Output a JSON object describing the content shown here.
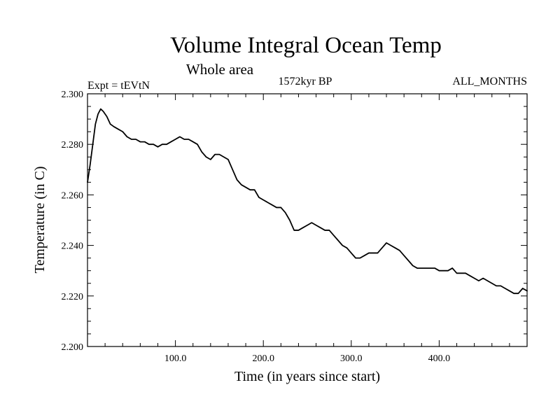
{
  "chart_data": {
    "type": "line",
    "title": "Volume Integral Ocean Temp",
    "subtitle": "Whole area",
    "left_label": "Expt = tEVtN",
    "center_label": "1572kyr BP",
    "right_label": "ALL_MONTHS",
    "xlabel": "Time (in years since start)",
    "ylabel": "Temperature (in C)",
    "xlim": [
      0,
      500
    ],
    "ylim": [
      2.2,
      2.3
    ],
    "x_ticks": [
      100,
      200,
      300,
      400
    ],
    "x_tick_labels": [
      "100.0",
      "200.0",
      "300.0",
      "400.0"
    ],
    "y_ticks": [
      2.2,
      2.22,
      2.24,
      2.26,
      2.28,
      2.3
    ],
    "y_tick_labels": [
      "2.200",
      "2.220",
      "2.240",
      "2.260",
      "2.280",
      "2.300"
    ],
    "grid": false,
    "line_color": "#000000",
    "series": [
      {
        "name": "tEVtN",
        "x": [
          0,
          3,
          6,
          9,
          12,
          15,
          18,
          22,
          26,
          30,
          35,
          40,
          45,
          50,
          55,
          60,
          65,
          70,
          75,
          80,
          85,
          90,
          95,
          100,
          105,
          110,
          115,
          120,
          125,
          130,
          135,
          140,
          145,
          150,
          155,
          160,
          165,
          170,
          175,
          180,
          185,
          190,
          195,
          200,
          205,
          210,
          215,
          220,
          225,
          230,
          235,
          240,
          245,
          250,
          255,
          260,
          265,
          270,
          275,
          280,
          285,
          290,
          295,
          300,
          305,
          310,
          315,
          320,
          325,
          330,
          335,
          340,
          345,
          350,
          355,
          360,
          365,
          370,
          375,
          380,
          385,
          390,
          395,
          400,
          405,
          410,
          415,
          420,
          425,
          430,
          435,
          440,
          445,
          450,
          455,
          460,
          465,
          470,
          475,
          480,
          485,
          490,
          495,
          500
        ],
        "y": [
          2.265,
          2.272,
          2.28,
          2.288,
          2.292,
          2.294,
          2.293,
          2.291,
          2.288,
          2.287,
          2.286,
          2.285,
          2.283,
          2.282,
          2.282,
          2.281,
          2.281,
          2.28,
          2.28,
          2.279,
          2.28,
          2.28,
          2.281,
          2.282,
          2.283,
          2.282,
          2.282,
          2.281,
          2.28,
          2.277,
          2.275,
          2.274,
          2.276,
          2.276,
          2.275,
          2.274,
          2.27,
          2.266,
          2.264,
          2.263,
          2.262,
          2.262,
          2.259,
          2.258,
          2.257,
          2.256,
          2.255,
          2.255,
          2.253,
          2.25,
          2.246,
          2.246,
          2.247,
          2.248,
          2.249,
          2.248,
          2.247,
          2.246,
          2.246,
          2.244,
          2.242,
          2.24,
          2.239,
          2.237,
          2.235,
          2.235,
          2.236,
          2.237,
          2.237,
          2.237,
          2.239,
          2.241,
          2.24,
          2.239,
          2.238,
          2.236,
          2.234,
          2.232,
          2.231,
          2.231,
          2.231,
          2.231,
          2.231,
          2.23,
          2.23,
          2.23,
          2.231,
          2.229,
          2.229,
          2.229,
          2.228,
          2.227,
          2.226,
          2.227,
          2.226,
          2.225,
          2.224,
          2.224,
          2.223,
          2.222,
          2.221,
          2.221,
          2.223,
          2.222
        ]
      }
    ]
  }
}
